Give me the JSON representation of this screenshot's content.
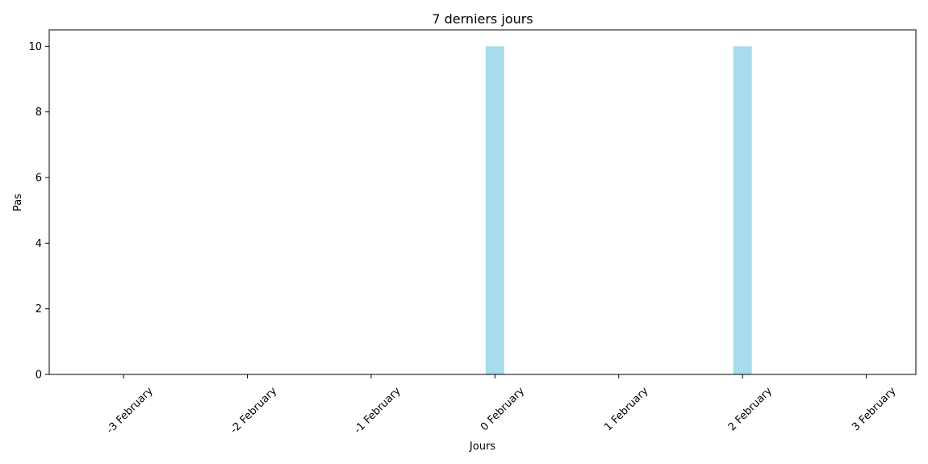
{
  "chart_data": {
    "type": "bar",
    "title": "7 derniers jours",
    "xlabel": "Jours",
    "ylabel": "Pas",
    "categories": [
      "-3 February",
      "-2 February",
      "-1 February",
      "0 February",
      "1 February",
      "2 February",
      "3 February"
    ],
    "values": [
      0,
      0,
      0,
      10,
      0,
      10,
      0
    ],
    "ylim": [
      0,
      10.5
    ],
    "yticks": [
      0,
      2,
      4,
      6,
      8,
      10
    ],
    "grid": false,
    "bar_color": "#a8dcec"
  }
}
